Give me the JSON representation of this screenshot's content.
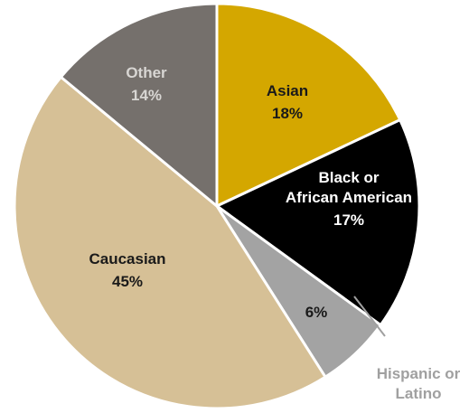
{
  "chart_data": {
    "type": "pie",
    "start_angle_deg": 0,
    "direction": "clockwise",
    "slices": [
      {
        "label_lines": [
          "Asian"
        ],
        "value": 18,
        "value_label": "18%",
        "color": "#D4A700",
        "text_color": "#1a1a1a"
      },
      {
        "label_lines": [
          "Black or",
          "African American"
        ],
        "value": 17,
        "value_label": "17%",
        "color": "#000000",
        "text_color": "#ffffff"
      },
      {
        "label_lines": [
          "Hispanic or",
          "Latino"
        ],
        "value": 6,
        "value_label": "6%",
        "color": "#A3A3A3",
        "text_color": "#1a1a1a",
        "external_label": true,
        "external_label_color": "#A0A0A0"
      },
      {
        "label_lines": [
          "Caucasian"
        ],
        "value": 45,
        "value_label": "45%",
        "color": "#D6C096",
        "text_color": "#1a1a1a"
      },
      {
        "label_lines": [
          "Other"
        ],
        "value": 14,
        "value_label": "14%",
        "color": "#75706C",
        "text_color": "#D8D6D3"
      }
    ]
  }
}
